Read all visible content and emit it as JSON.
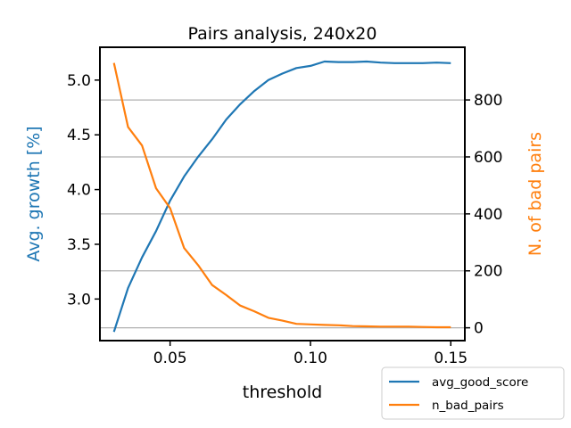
{
  "chart_data": {
    "type": "line",
    "title": "Pairs analysis, 240x20",
    "xlabel": "threshold",
    "ylabel_left": "Avg. growth [%]",
    "ylabel_right": "N. of bad pairs",
    "xlim": [
      0.025,
      0.155
    ],
    "ylim_left": [
      2.62,
      5.3
    ],
    "ylim_right": [
      -45,
      985
    ],
    "xticks": [
      0.05,
      0.1,
      0.15
    ],
    "xtick_labels": [
      "0.05",
      "0.10",
      "0.15"
    ],
    "yticks_left": [
      3.0,
      3.5,
      4.0,
      4.5,
      5.0
    ],
    "ytick_labels_left": [
      "3.0",
      "3.5",
      "4.0",
      "4.5",
      "5.0"
    ],
    "yticks_right": [
      0,
      200,
      400,
      600,
      800
    ],
    "ytick_labels_right": [
      "0",
      "200",
      "400",
      "600",
      "800"
    ],
    "grid": "horizontal lines on right axis",
    "legend_position": "bottom-right",
    "x": [
      0.03,
      0.035,
      0.04,
      0.045,
      0.05,
      0.055,
      0.06,
      0.065,
      0.07,
      0.075,
      0.08,
      0.085,
      0.09,
      0.095,
      0.1,
      0.105,
      0.11,
      0.115,
      0.12,
      0.125,
      0.13,
      0.135,
      0.14,
      0.145,
      0.15
    ],
    "series": [
      {
        "name": "avg_good_score",
        "axis": "left",
        "color": "#1f77b4",
        "values": [
          2.7,
          3.1,
          3.38,
          3.62,
          3.9,
          4.12,
          4.3,
          4.46,
          4.64,
          4.78,
          4.9,
          5.0,
          5.06,
          5.11,
          5.13,
          5.17,
          5.165,
          5.165,
          5.17,
          5.16,
          5.155,
          5.155,
          5.155,
          5.16,
          5.155
        ]
      },
      {
        "name": "n_bad_pairs",
        "axis": "right",
        "color": "#ff7f0e",
        "values": [
          930,
          705,
          640,
          490,
          420,
          280,
          220,
          150,
          115,
          78,
          58,
          35,
          25,
          14,
          12,
          10,
          9,
          6,
          5,
          4,
          4,
          4,
          3,
          2,
          2
        ]
      }
    ]
  }
}
